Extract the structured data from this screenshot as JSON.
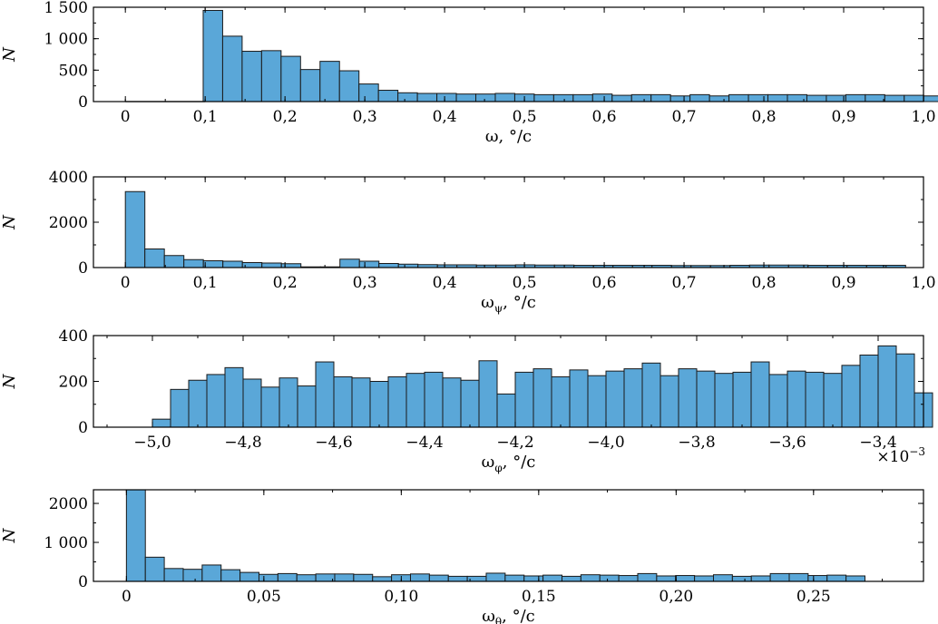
{
  "colors": {
    "bar_fill": "#5aa7d8",
    "bar_edge": "#1a1a1a",
    "axis": "#000000"
  },
  "chart_data": [
    {
      "type": "bar",
      "id": "omega",
      "xlabel": "ω, °/c",
      "ylabel": "N",
      "xlim": [
        -0.04,
        1.0
      ],
      "ylim": [
        0,
        1500
      ],
      "xticks": [
        0,
        0.1,
        0.2,
        0.3,
        0.4,
        0.5,
        0.6,
        0.7,
        0.8,
        0.9,
        1.0
      ],
      "xtick_labels": [
        "0",
        "0,1",
        "0,2",
        "0,3",
        "0,4",
        "0,5",
        "0,6",
        "0,7",
        "0,8",
        "0,9",
        "1,0"
      ],
      "yticks": [
        0,
        500,
        1000,
        1500
      ],
      "ytick_labels": [
        "0",
        "500",
        "1 000",
        "1 500"
      ],
      "baseline_x": [
        0,
        0.1
      ],
      "bin_start": 0.0975,
      "bin_width": 0.0244,
      "values": [
        1450,
        1040,
        800,
        810,
        720,
        510,
        640,
        490,
        280,
        180,
        140,
        130,
        130,
        120,
        120,
        130,
        120,
        110,
        110,
        110,
        120,
        100,
        110,
        110,
        90,
        110,
        90,
        110,
        110,
        110,
        110,
        100,
        100,
        110,
        110,
        100,
        100,
        90
      ]
    },
    {
      "type": "bar",
      "id": "omega-psi",
      "xlabel": "ω",
      "xlabel_sub": "ψ",
      "xlabel_tail": ", °/c",
      "ylabel": "N",
      "xlim": [
        -0.04,
        1.0
      ],
      "ylim": [
        0,
        4000
      ],
      "xticks": [
        0,
        0.1,
        0.2,
        0.3,
        0.4,
        0.5,
        0.6,
        0.7,
        0.8,
        0.9,
        1.0
      ],
      "xtick_labels": [
        "0",
        "0,1",
        "0,2",
        "0,3",
        "0,4",
        "0,5",
        "0,6",
        "0,7",
        "0,8",
        "0,9",
        "1,0"
      ],
      "yticks": [
        0,
        2000,
        4000
      ],
      "ytick_labels": [
        "0",
        "2000",
        "4000"
      ],
      "bin_start": 0.0,
      "bin_width": 0.02444,
      "values": [
        3350,
        820,
        530,
        350,
        300,
        280,
        220,
        200,
        170,
        30,
        30,
        370,
        280,
        180,
        150,
        130,
        120,
        120,
        110,
        110,
        120,
        110,
        110,
        100,
        100,
        100,
        100,
        100,
        90,
        90,
        90,
        100,
        110,
        110,
        110,
        100,
        100,
        100,
        100,
        100
      ]
    },
    {
      "type": "bar",
      "id": "omega-phi",
      "xlabel": "ω",
      "xlabel_sub": "φ",
      "xlabel_tail": ", °/c",
      "ylabel": "N",
      "multiplier": "×10",
      "multiplier_exp": "−3",
      "xlim": [
        -5.13,
        -3.3
      ],
      "ylim": [
        0,
        400
      ],
      "xticks": [
        -5.0,
        -4.8,
        -4.6,
        -4.4,
        -4.2,
        -4.0,
        -3.8,
        -3.6,
        -3.4
      ],
      "xtick_labels": [
        "−5,0",
        "−4,8",
        "−4,6",
        "−4,4",
        "−4,2",
        "−4,0",
        "−3,8",
        "−3,6",
        "−3,4"
      ],
      "yticks": [
        0,
        200,
        400
      ],
      "ytick_labels": [
        "0",
        "200",
        "400"
      ],
      "bin_start": -5.0,
      "bin_width": 0.04,
      "values": [
        35,
        165,
        205,
        230,
        260,
        210,
        175,
        215,
        180,
        285,
        220,
        215,
        200,
        220,
        235,
        240,
        215,
        205,
        290,
        145,
        240,
        255,
        220,
        250,
        225,
        245,
        255,
        280,
        225,
        255,
        245,
        235,
        240,
        285,
        230,
        245,
        240,
        235,
        270,
        315,
        355,
        320,
        150
      ]
    },
    {
      "type": "bar",
      "id": "omega-theta",
      "xlabel": "ω",
      "xlabel_sub": "θ",
      "xlabel_tail": ", °/c",
      "ylabel": "N",
      "xlim": [
        -0.012,
        0.29
      ],
      "ylim": [
        0,
        2350
      ],
      "xticks": [
        0,
        0.05,
        0.1,
        0.15,
        0.2,
        0.25
      ],
      "xtick_labels": [
        "0",
        "0,05",
        "0,10",
        "0,15",
        "0,20",
        "0,25"
      ],
      "yticks": [
        0,
        1000,
        2000
      ],
      "ytick_labels": [
        "0",
        "1 000",
        "2000"
      ],
      "bin_start": 0.0,
      "bin_width": 0.00689,
      "values": [
        2350,
        620,
        330,
        310,
        420,
        300,
        230,
        180,
        200,
        170,
        190,
        190,
        180,
        120,
        170,
        190,
        160,
        130,
        130,
        210,
        160,
        140,
        160,
        130,
        170,
        160,
        150,
        200,
        140,
        150,
        140,
        170,
        130,
        140,
        200,
        200,
        150,
        160,
        140
      ]
    }
  ]
}
